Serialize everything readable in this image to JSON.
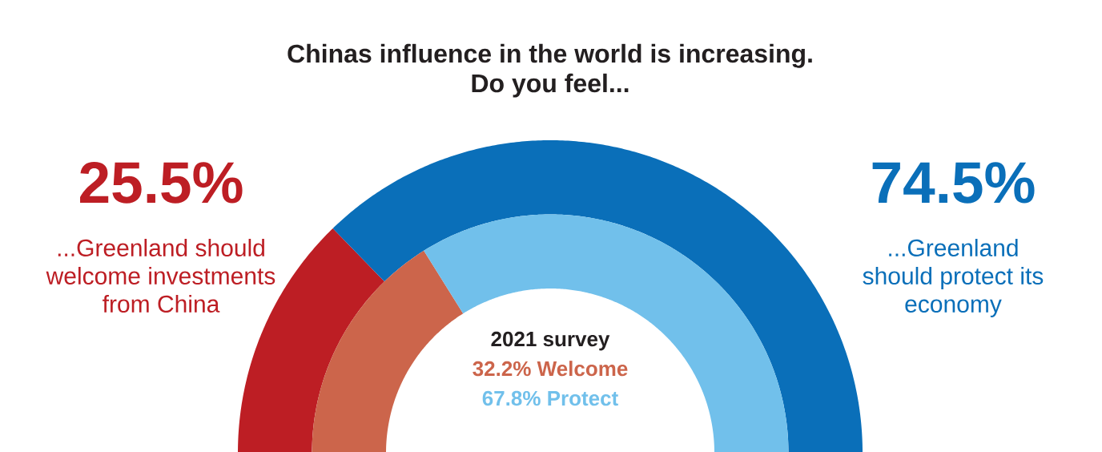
{
  "chart_data": {
    "type": "donut",
    "title": "Chinas influence in the world is increasing.",
    "subtitle": "Do you feel...",
    "categories": [
      "...Greenland should welcome investments from China",
      "...Greenland should protect its economy"
    ],
    "series": [
      {
        "colors": [
          "#bd1e24",
          "#0a6fb9"
        ],
        "values": [
          25.5,
          74.5
        ],
        "value_labels": [
          "25.5%",
          "74.5%"
        ]
      },
      {
        "name": "2021 survey",
        "colors": [
          "#cc654b",
          "#71c0eb"
        ],
        "values": [
          32.2,
          67.8
        ]
      }
    ],
    "annotations": [
      "32.2% Welcome",
      "67.8% Protect"
    ]
  }
}
